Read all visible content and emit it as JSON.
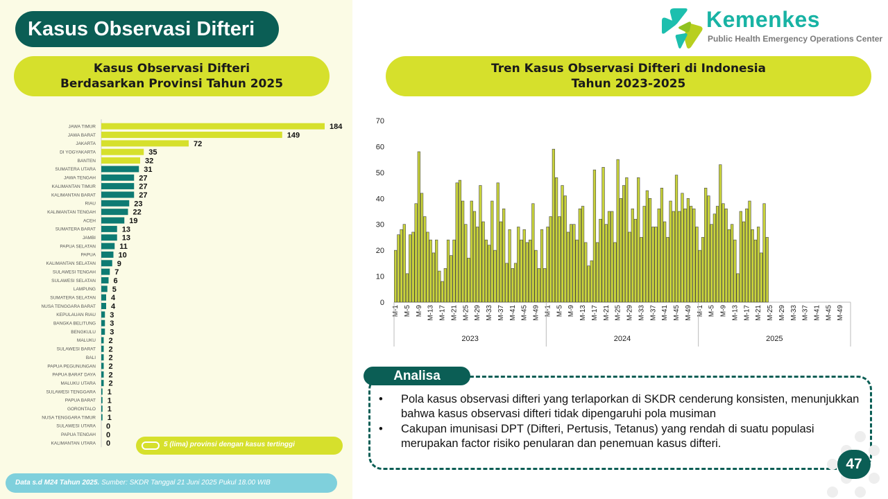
{
  "page": {
    "title": "Kasus Observasi Difteri",
    "left_subtitle_line1": "Kasus Observasi Difteri",
    "left_subtitle_line2": "Berdasarkan Provinsi Tahun 2025",
    "right_subtitle_line1": "Tren Kasus Observasi Difteri di Indonesia",
    "right_subtitle_line2": "Tahun 2023-2025",
    "logo_name": "Kemenkes",
    "logo_sub": "Public Health Emergency Operations Center",
    "legend_text": "5 (lima) provinsi dengan kasus tertinggi",
    "footer_bold": "Data s.d M24 Tahun 2025.",
    "footer_rest": " Sumber: SKDR Tanggal 21 Juni 2025 Pukul 18.00 WIB",
    "analysis_label": "Analisa",
    "analysis_points": [
      "Pola kasus observasi difteri yang terlaporkan di SKDR cenderung konsisten, menunjukkan bahwa kasus observasi difteri tidak dipengaruhi pola musiman",
      "Cakupan imunisasi DPT (Difteri, Pertusis, Tetanus) yang rendah di suatu populasi merupakan factor risiko penularan dan penemuan kasus difteri."
    ],
    "bullet": "•",
    "page_number": "47",
    "colors": {
      "dark_teal": "#0b5e55",
      "lime": "#d6e02c",
      "top5_bar": "#d6e02c",
      "other_bar": "#0e7b73",
      "trend_bar": "#c9d33a",
      "footer": "#7fd0dc"
    }
  },
  "chart_data": [
    {
      "type": "bar",
      "orientation": "horizontal",
      "highlight_top": 5,
      "categories": [
        "JAWA TIMUR",
        "JAWA BARAT",
        "JAKARTA",
        "DI YOGYAKARTA",
        "BANTEN",
        "SUMATERA UTARA",
        "JAWA TENGAH",
        "KALIMANTAN TIMUR",
        "KALIMANTAN BARAT",
        "RIAU",
        "KALIMANTAN TENGAH",
        "ACEH",
        "SUMATERA BARAT",
        "JAMBI",
        "PAPUA SELATAN",
        "PAPUA",
        "KALIMANTAN SELATAN",
        "SULAWESI TENGAH",
        "SULAWESI SELATAN",
        "LAMPUNG",
        "SUMATERA SELATAN",
        "NUSA TENGGARA BARAT",
        "KEPULAUAN RIAU",
        "BANGKA BELITUNG",
        "BENGKULU",
        "MALUKU",
        "SULAWESI BARAT",
        "BALI",
        "PAPUA PEGUNUNGAN",
        "PAPUA BARAT DAYA",
        "MALUKU UTARA",
        "SULAWESI TENGGARA",
        "PAPUA BARAT",
        "GORONTALO",
        "NUSA TENGGARA TIMUR",
        "SULAWESI UTARA",
        "PAPUA TENGAH",
        "KALIMANTAN UTARA"
      ],
      "values": [
        184,
        149,
        72,
        35,
        32,
        31,
        27,
        27,
        27,
        23,
        22,
        19,
        13,
        13,
        11,
        10,
        9,
        7,
        6,
        5,
        4,
        4,
        3,
        3,
        3,
        2,
        2,
        2,
        2,
        2,
        2,
        1,
        1,
        1,
        1,
        0,
        0,
        0
      ],
      "xlim": [
        0,
        184
      ]
    },
    {
      "type": "bar",
      "ylim": [
        0,
        70
      ],
      "yticks": [
        0,
        10,
        20,
        30,
        40,
        50,
        60,
        70
      ],
      "week_ticks": [
        "M-1",
        "M-5",
        "M-9",
        "M-13",
        "M-17",
        "M-21",
        "M-25",
        "M-29",
        "M-33",
        "M-37",
        "M-41",
        "M-45",
        "M-49"
      ],
      "groups": [
        "2023",
        "2024",
        "2025"
      ],
      "series": [
        {
          "year": "2023",
          "values": [
            20,
            26,
            28,
            30,
            11,
            26,
            27,
            38,
            58,
            42,
            33,
            27,
            24,
            19,
            24,
            12,
            8,
            13,
            24,
            18,
            24,
            46,
            47,
            39,
            30,
            17,
            39,
            35,
            29,
            45,
            31,
            24,
            22,
            39,
            20,
            46,
            31,
            36,
            15,
            28,
            13,
            15,
            29,
            24,
            28,
            23,
            24,
            38,
            20,
            13,
            28,
            13
          ]
        },
        {
          "year": "2024",
          "values": [
            29,
            33,
            59,
            48,
            33,
            45,
            41,
            27,
            30,
            30,
            24,
            36,
            37,
            23,
            14,
            16,
            51,
            23,
            32,
            52,
            30,
            35,
            35,
            23,
            55,
            40,
            45,
            48,
            27,
            36,
            32,
            48,
            25,
            37,
            43,
            40,
            29,
            29,
            36,
            44,
            31,
            25,
            39,
            35,
            49,
            35,
            42,
            36,
            40,
            37,
            36,
            29
          ]
        },
        {
          "year": "2025",
          "values": [
            20,
            25,
            44,
            41,
            30,
            34,
            37,
            53,
            38,
            36,
            28,
            30,
            24,
            11,
            35,
            31,
            36,
            39,
            28,
            24,
            29,
            19,
            38,
            25
          ]
        }
      ]
    }
  ]
}
